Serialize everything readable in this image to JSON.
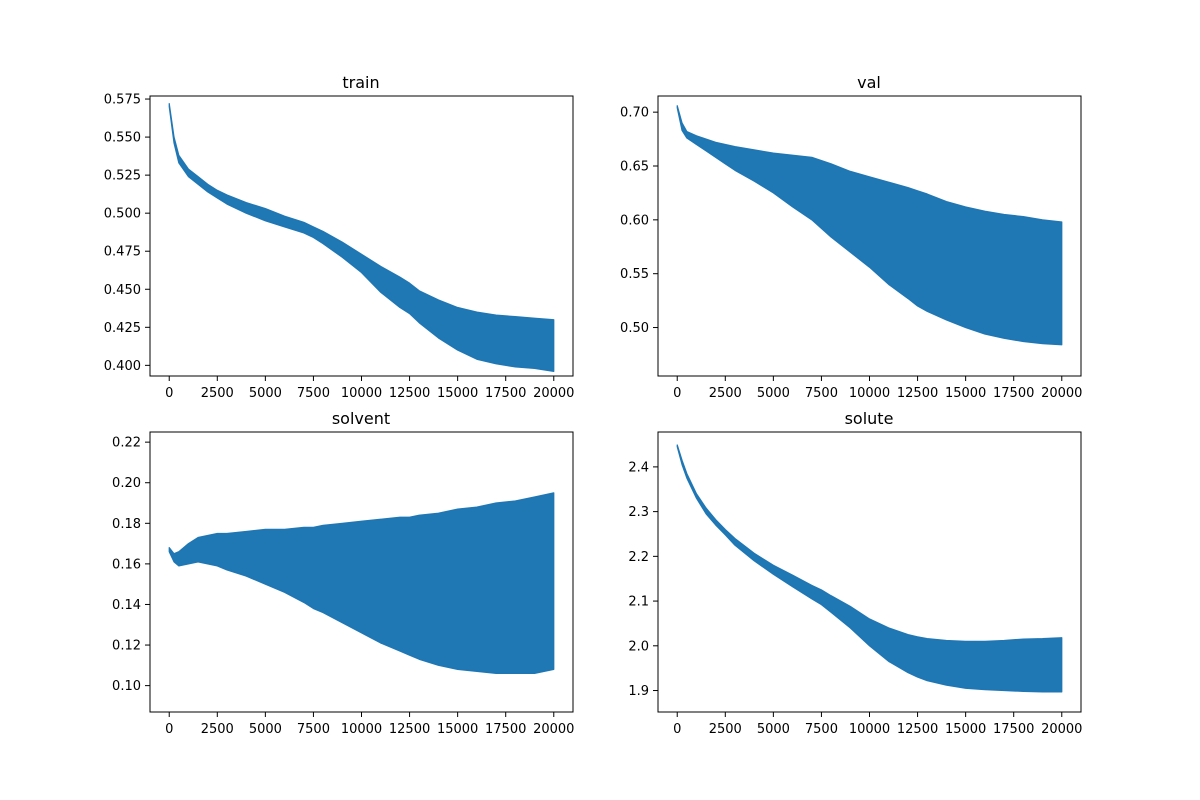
{
  "chart_data": [
    {
      "type": "line",
      "title": "train",
      "xlabel": "",
      "ylabel": "",
      "xlim": [
        -1000,
        21000
      ],
      "ylim": [
        0.393,
        0.577
      ],
      "xticks": [
        0,
        2500,
        5000,
        7500,
        10000,
        12500,
        15000,
        17500,
        20000
      ],
      "xtick_labels": [
        "0",
        "2500",
        "5000",
        "7500",
        "10000",
        "12500",
        "15000",
        "17500",
        "20000"
      ],
      "yticks": [
        0.4,
        0.425,
        0.45,
        0.475,
        0.5,
        0.525,
        0.55,
        0.575
      ],
      "ytick_labels": [
        "0.400",
        "0.425",
        "0.450",
        "0.475",
        "0.500",
        "0.525",
        "0.550",
        "0.575"
      ],
      "grid": false,
      "color": "#1f77b4",
      "series": [
        {
          "x": [
            0,
            250,
            500,
            1000,
            1500,
            2000,
            2500,
            3000,
            4000,
            5000,
            6000,
            7000,
            7500,
            8000,
            9000,
            10000,
            11000,
            12000,
            12500,
            13000,
            14000,
            15000,
            16000,
            17000,
            18000,
            19000,
            20000
          ],
          "upper": [
            0.572,
            0.55,
            0.538,
            0.529,
            0.524,
            0.519,
            0.515,
            0.512,
            0.507,
            0.503,
            0.498,
            0.494,
            0.491,
            0.488,
            0.481,
            0.473,
            0.465,
            0.458,
            0.454,
            0.449,
            0.443,
            0.438,
            0.435,
            0.433,
            0.432,
            0.431,
            0.43
          ],
          "lower": [
            0.57,
            0.546,
            0.533,
            0.524,
            0.519,
            0.514,
            0.51,
            0.506,
            0.5,
            0.495,
            0.491,
            0.487,
            0.484,
            0.48,
            0.471,
            0.461,
            0.448,
            0.438,
            0.434,
            0.428,
            0.418,
            0.41,
            0.404,
            0.401,
            0.399,
            0.398,
            0.396
          ]
        }
      ]
    },
    {
      "type": "line",
      "title": "val",
      "xlabel": "",
      "ylabel": "",
      "xlim": [
        -1000,
        21000
      ],
      "ylim": [
        0.455,
        0.715
      ],
      "xticks": [
        0,
        2500,
        5000,
        7500,
        10000,
        12500,
        15000,
        17500,
        20000
      ],
      "xtick_labels": [
        "0",
        "2500",
        "5000",
        "7500",
        "10000",
        "12500",
        "15000",
        "17500",
        "20000"
      ],
      "yticks": [
        0.5,
        0.55,
        0.6,
        0.65,
        0.7
      ],
      "ytick_labels": [
        "0.50",
        "0.55",
        "0.60",
        "0.65",
        "0.70"
      ],
      "grid": false,
      "color": "#1f77b4",
      "series": [
        {
          "x": [
            0,
            250,
            500,
            1000,
            1500,
            2000,
            2500,
            3000,
            4000,
            5000,
            6000,
            7000,
            7500,
            8000,
            9000,
            10000,
            11000,
            12000,
            12500,
            13000,
            14000,
            15000,
            16000,
            17000,
            18000,
            19000,
            20000
          ],
          "upper": [
            0.706,
            0.69,
            0.682,
            0.678,
            0.675,
            0.672,
            0.67,
            0.668,
            0.665,
            0.662,
            0.66,
            0.658,
            0.655,
            0.652,
            0.645,
            0.64,
            0.635,
            0.63,
            0.627,
            0.624,
            0.617,
            0.612,
            0.608,
            0.605,
            0.603,
            0.6,
            0.598
          ],
          "lower": [
            0.704,
            0.683,
            0.676,
            0.67,
            0.664,
            0.658,
            0.652,
            0.646,
            0.636,
            0.625,
            0.612,
            0.6,
            0.592,
            0.584,
            0.57,
            0.556,
            0.54,
            0.527,
            0.52,
            0.515,
            0.507,
            0.5,
            0.494,
            0.49,
            0.487,
            0.485,
            0.484
          ]
        }
      ]
    },
    {
      "type": "line",
      "title": "solvent",
      "xlabel": "",
      "ylabel": "",
      "xlim": [
        -1000,
        21000
      ],
      "ylim": [
        0.087,
        0.225
      ],
      "xticks": [
        0,
        2500,
        5000,
        7500,
        10000,
        12500,
        15000,
        17500,
        20000
      ],
      "xtick_labels": [
        "0",
        "2500",
        "5000",
        "7500",
        "10000",
        "12500",
        "15000",
        "17500",
        "20000"
      ],
      "yticks": [
        0.1,
        0.12,
        0.14,
        0.16,
        0.18,
        0.2,
        0.22
      ],
      "ytick_labels": [
        "0.10",
        "0.12",
        "0.14",
        "0.16",
        "0.18",
        "0.20",
        "0.22"
      ],
      "grid": false,
      "color": "#1f77b4",
      "series": [
        {
          "x": [
            0,
            250,
            500,
            1000,
            1500,
            2000,
            2500,
            3000,
            4000,
            5000,
            6000,
            7000,
            7500,
            8000,
            9000,
            10000,
            11000,
            12000,
            12500,
            13000,
            14000,
            15000,
            16000,
            17000,
            18000,
            19000,
            20000
          ],
          "upper": [
            0.168,
            0.165,
            0.166,
            0.17,
            0.173,
            0.174,
            0.175,
            0.175,
            0.176,
            0.177,
            0.177,
            0.178,
            0.178,
            0.179,
            0.18,
            0.181,
            0.182,
            0.183,
            0.183,
            0.184,
            0.185,
            0.187,
            0.188,
            0.19,
            0.191,
            0.193,
            0.195
          ],
          "lower": [
            0.166,
            0.161,
            0.159,
            0.16,
            0.161,
            0.16,
            0.159,
            0.157,
            0.154,
            0.15,
            0.146,
            0.141,
            0.138,
            0.136,
            0.131,
            0.126,
            0.121,
            0.117,
            0.115,
            0.113,
            0.11,
            0.108,
            0.107,
            0.106,
            0.106,
            0.106,
            0.108
          ]
        }
      ]
    },
    {
      "type": "line",
      "title": "solute",
      "xlabel": "",
      "ylabel": "",
      "xlim": [
        -1000,
        21000
      ],
      "ylim": [
        1.852,
        2.478
      ],
      "xticks": [
        0,
        2500,
        5000,
        7500,
        10000,
        12500,
        15000,
        17500,
        20000
      ],
      "xtick_labels": [
        "0",
        "2500",
        "5000",
        "7500",
        "10000",
        "12500",
        "15000",
        "17500",
        "20000"
      ],
      "yticks": [
        1.9,
        2.0,
        2.1,
        2.2,
        2.3,
        2.4
      ],
      "ytick_labels": [
        "1.9",
        "2.0",
        "2.1",
        "2.2",
        "2.3",
        "2.4"
      ],
      "grid": false,
      "color": "#1f77b4",
      "series": [
        {
          "x": [
            0,
            250,
            500,
            1000,
            1500,
            2000,
            2500,
            3000,
            4000,
            5000,
            6000,
            7000,
            7500,
            8000,
            9000,
            10000,
            11000,
            12000,
            12500,
            13000,
            14000,
            15000,
            16000,
            17000,
            18000,
            19000,
            20000
          ],
          "upper": [
            2.449,
            2.415,
            2.385,
            2.34,
            2.308,
            2.282,
            2.26,
            2.24,
            2.207,
            2.18,
            2.158,
            2.135,
            2.125,
            2.112,
            2.088,
            2.06,
            2.04,
            2.025,
            2.02,
            2.016,
            2.012,
            2.01,
            2.01,
            2.012,
            2.015,
            2.016,
            2.018
          ],
          "lower": [
            2.445,
            2.405,
            2.375,
            2.33,
            2.295,
            2.27,
            2.248,
            2.225,
            2.19,
            2.16,
            2.132,
            2.105,
            2.092,
            2.075,
            2.04,
            2.0,
            1.965,
            1.94,
            1.93,
            1.922,
            1.912,
            1.905,
            1.902,
            1.9,
            1.898,
            1.897,
            1.897
          ]
        }
      ]
    }
  ]
}
